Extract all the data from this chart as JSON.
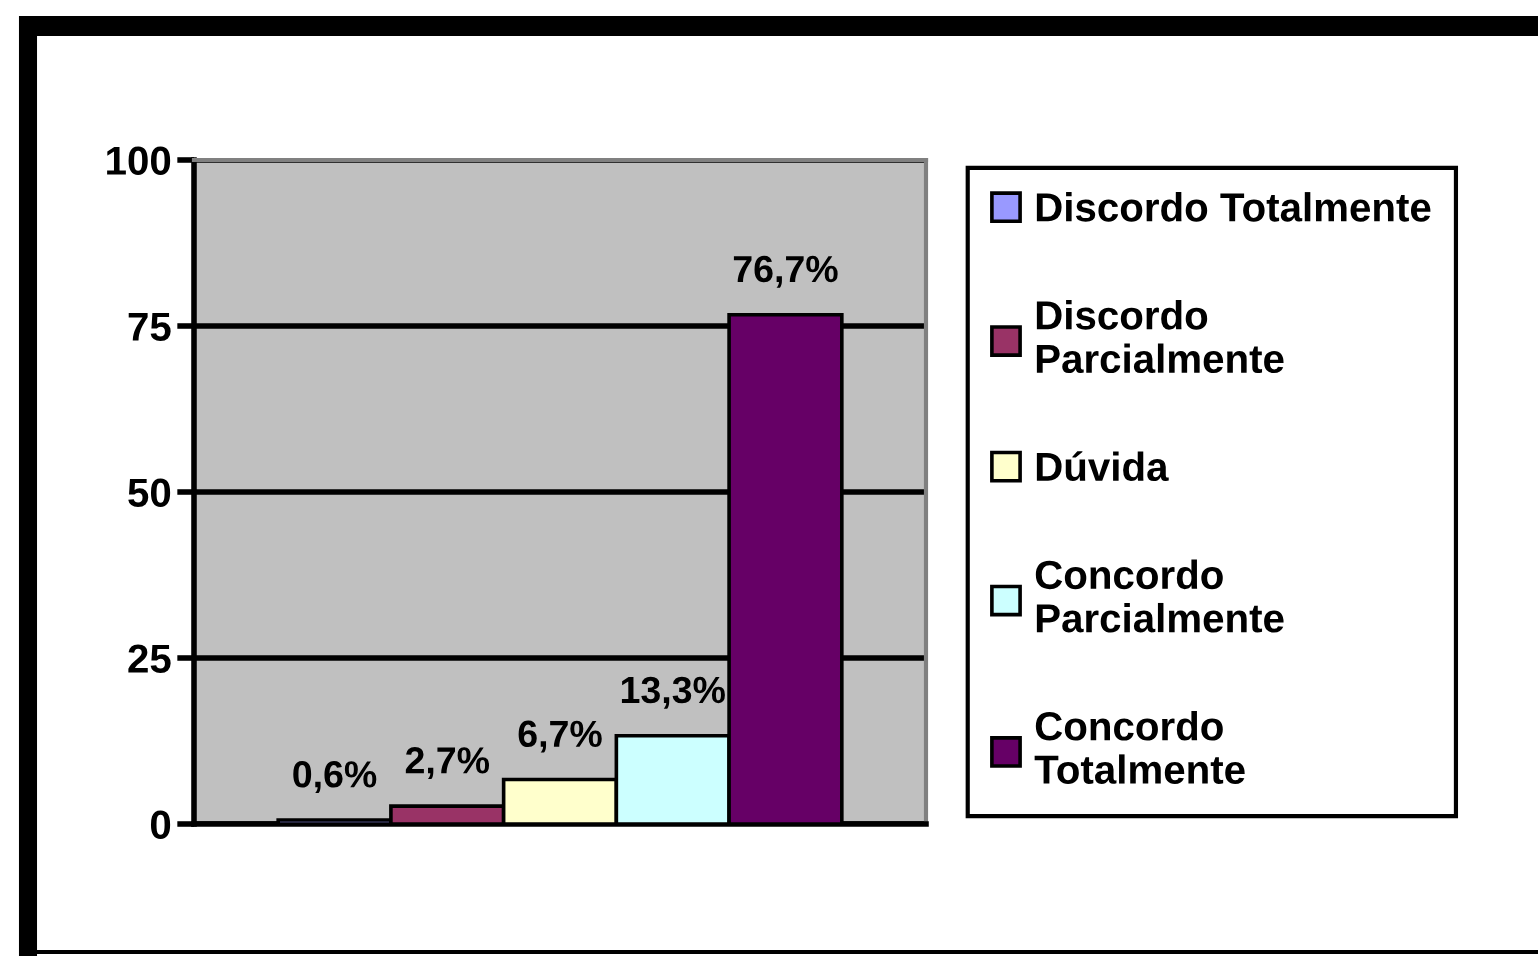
{
  "chart_data": {
    "type": "bar",
    "categories": [
      null
    ],
    "series": [
      {
        "name": "Discordo Totalmente",
        "color": "#9999ff",
        "values": [
          0.6
        ],
        "value_labels": [
          "0,6%"
        ]
      },
      {
        "name": "Discordo Parcialmente",
        "color": "#993366",
        "values": [
          2.7
        ],
        "value_labels": [
          "2,7%"
        ]
      },
      {
        "name": "Dúvida",
        "color": "#ffffcc",
        "values": [
          6.7
        ],
        "value_labels": [
          "6,7%"
        ]
      },
      {
        "name": "Concordo Parcialmente",
        "color": "#ccffff",
        "values": [
          13.3
        ],
        "value_labels": [
          "13,3%"
        ]
      },
      {
        "name": "Concordo Totalmente",
        "color": "#660066",
        "values": [
          76.7
        ],
        "value_labels": [
          "76,7%"
        ]
      }
    ],
    "ylim": [
      0,
      100
    ],
    "yticks": [
      0,
      25,
      50,
      75,
      100
    ],
    "grid": "y",
    "legend": "right"
  }
}
